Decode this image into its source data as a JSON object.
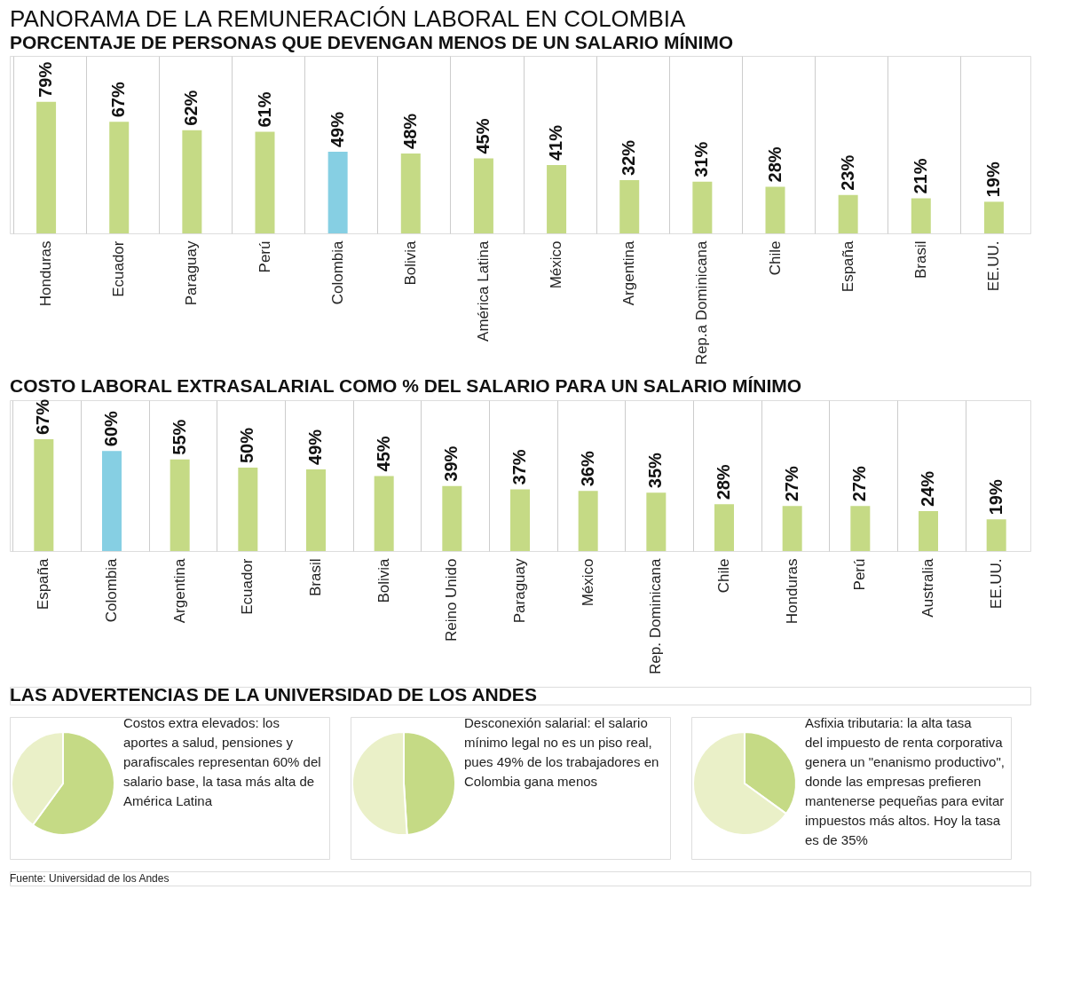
{
  "chart_data": [
    {
      "type": "bar",
      "title": "PANORAMA DE LA REMUNERACIÓN LABORAL EN COLOMBIA",
      "subtitle": "PORCENTAJE DE PERSONAS QUE DEVENGAN MENOS DE UN SALARIO MÍNIMO",
      "categories": [
        "Honduras",
        "Ecuador",
        "Paraguay",
        "Perú",
        "Colombia",
        "Bolivia",
        "América Latina",
        "México",
        "Argentina",
        "Rep.a Dominicana",
        "Chile",
        "España",
        "Brasil",
        "EE.UU."
      ],
      "values": [
        79,
        67,
        62,
        61,
        49,
        48,
        45,
        41,
        32,
        31,
        28,
        23,
        21,
        19
      ],
      "value_labels": [
        "79%",
        "67%",
        "62%",
        "61%",
        "49%",
        "48%",
        "45%",
        "41%",
        "32%",
        "31%",
        "28%",
        "23%",
        "21%",
        "19%"
      ],
      "colors": [
        "#c5da85",
        "#c5da85",
        "#c5da85",
        "#c5da85",
        "#86cfe3",
        "#c5da85",
        "#c5da85",
        "#c5da85",
        "#c5da85",
        "#c5da85",
        "#c5da85",
        "#c5da85",
        "#c5da85",
        "#c5da85"
      ]
    },
    {
      "type": "bar",
      "title": "COSTO LABORAL EXTRASALARIAL COMO % DEL SALARIO PARA UN SALARIO MÍNIMO",
      "categories": [
        "España",
        "Colombia",
        "Argentina",
        "Ecuador",
        "Brasil",
        "Bolivia",
        "Reino Unido",
        "Paraguay",
        "México",
        "Rep. Dominicana",
        "Chile",
        "Honduras",
        "Perú",
        "Australia",
        "EE.UU."
      ],
      "values": [
        67,
        60,
        55,
        50,
        49,
        45,
        39,
        37,
        36,
        35,
        28,
        27,
        27,
        24,
        19
      ],
      "value_labels": [
        "67%",
        "60%",
        "55%",
        "50%",
        "49%",
        "45%",
        "39%",
        "37%",
        "36%",
        "35%",
        "28%",
        "27%",
        "27%",
        "24%",
        "19%"
      ],
      "colors": [
        "#c5da85",
        "#86cfe3",
        "#c5da85",
        "#c5da85",
        "#c5da85",
        "#c5da85",
        "#c5da85",
        "#c5da85",
        "#c5da85",
        "#c5da85",
        "#c5da85",
        "#c5da85",
        "#c5da85",
        "#c5da85",
        "#c5da85"
      ]
    },
    {
      "type": "pie",
      "title": "LAS ADVERTENCIAS DE LA UNIVERSIDAD DE LOS ANDES",
      "categories": [
        null,
        null
      ],
      "values": [
        60,
        40
      ],
      "colors": [
        "#c5da85",
        "#eaf0c8"
      ],
      "annotations": [
        "Costos extra elevados: los aportes a salud, pensiones y parafiscales representan 60% del salario base, la tasa más alta de América Latina"
      ]
    },
    {
      "type": "pie",
      "categories": [
        null,
        null
      ],
      "values": [
        49,
        51
      ],
      "colors": [
        "#c5da85",
        "#eaf0c8"
      ],
      "annotations": [
        "Desconexión salarial: el salario mínimo legal no es un piso real, pues 49% de los trabajadores en Colombia gana menos"
      ]
    },
    {
      "type": "pie",
      "categories": [
        null,
        null
      ],
      "values": [
        35,
        65
      ],
      "colors": [
        "#c5da85",
        "#eaf0c8"
      ],
      "annotations": [
        "Asfixia tributaria: la alta tasa del impuesto de renta corporativa genera un \"enanismo productivo\", donde las empresas prefieren mantenerse pequeñas para evitar impuestos más altos. Hoy la tasa es de 35%",
        "Fuente: Universidad de los Andes"
      ]
    }
  ]
}
